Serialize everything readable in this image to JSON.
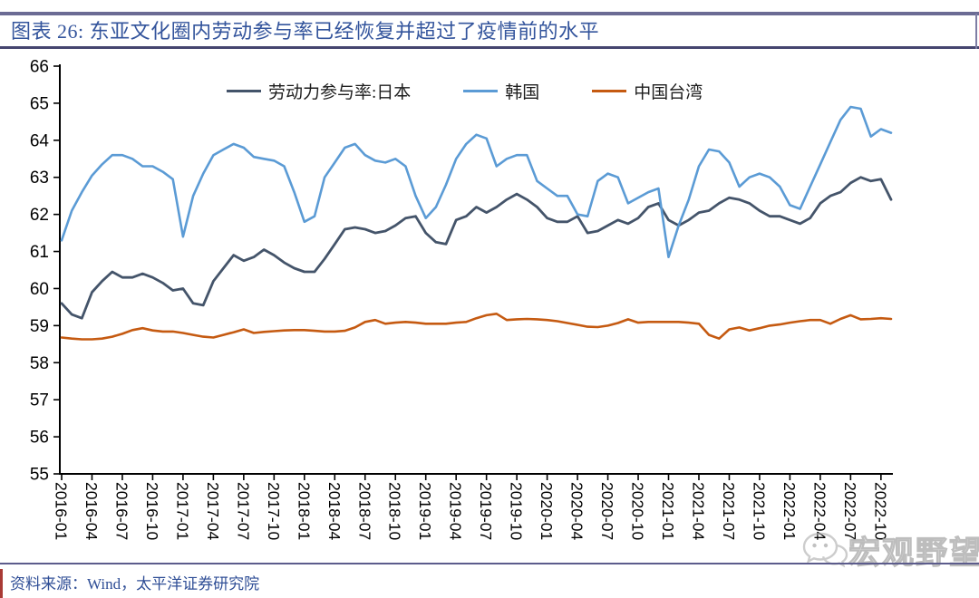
{
  "header": {
    "title": "图表 26:  东亚文化圈内劳动参与率已经恢复并超过了疫情前的水平"
  },
  "footer": {
    "source": "资料来源：Wind，太平洋证券研究院"
  },
  "watermark": {
    "text": "宏观野望",
    "icon": "wechat-icon"
  },
  "colors": {
    "accent_rule": "#6b6b94",
    "title_text": "#33549c",
    "source_text": "#2f4e96"
  },
  "chart_data": {
    "type": "line",
    "title": "东亚文化圈内劳动参与率已经恢复并超过了疫情前的水平",
    "frequency": "monthly",
    "x_start": "2016-01",
    "x_end": "2022-11",
    "x_tick_labels": [
      "2016-01",
      "2016-04",
      "2016-07",
      "2016-10",
      "2017-01",
      "2017-04",
      "2017-07",
      "2017-10",
      "2018-01",
      "2018-04",
      "2018-07",
      "2018-10",
      "2019-01",
      "2019-04",
      "2019-07",
      "2019-10",
      "2020-01",
      "2020-04",
      "2020-07",
      "2020-10",
      "2021-01",
      "2021-04",
      "2021-07",
      "2021-10",
      "2022-01",
      "2022-04",
      "2022-07",
      "2022-10"
    ],
    "x_tick_every_n_months": 3,
    "ylim": [
      55,
      66
    ],
    "y_tick_step": 1,
    "grid": false,
    "legend_position": "top-center",
    "series": [
      {
        "name": "劳动力参与率:日本",
        "color": "#44546A",
        "values": [
          59.6,
          59.3,
          59.2,
          59.9,
          60.2,
          60.45,
          60.3,
          60.3,
          60.4,
          60.3,
          60.15,
          59.95,
          60.0,
          59.6,
          59.55,
          60.2,
          60.55,
          60.9,
          60.75,
          60.85,
          61.05,
          60.9,
          60.7,
          60.55,
          60.45,
          60.45,
          60.8,
          61.2,
          61.6,
          61.65,
          61.6,
          61.5,
          61.55,
          61.7,
          61.9,
          61.95,
          61.5,
          61.25,
          61.2,
          61.85,
          61.95,
          62.2,
          62.05,
          62.2,
          62.4,
          62.55,
          62.4,
          62.2,
          61.9,
          61.8,
          61.8,
          61.95,
          61.5,
          61.55,
          61.7,
          61.85,
          61.75,
          61.9,
          62.2,
          62.3,
          61.85,
          61.7,
          61.85,
          62.05,
          62.1,
          62.3,
          62.45,
          62.4,
          62.3,
          62.1,
          61.95,
          61.95,
          61.85,
          61.75,
          61.9,
          62.3,
          62.5,
          62.6,
          62.85,
          63.0,
          62.9,
          62.95,
          62.4
        ]
      },
      {
        "name": "韩国",
        "color": "#5B9BD5",
        "values": [
          61.3,
          62.1,
          62.6,
          63.05,
          63.35,
          63.6,
          63.6,
          63.5,
          63.3,
          63.3,
          63.15,
          62.95,
          61.4,
          62.5,
          63.1,
          63.6,
          63.75,
          63.9,
          63.8,
          63.55,
          63.5,
          63.45,
          63.3,
          62.6,
          61.8,
          61.95,
          63.0,
          63.4,
          63.8,
          63.9,
          63.6,
          63.45,
          63.4,
          63.5,
          63.3,
          62.5,
          61.9,
          62.2,
          62.8,
          63.5,
          63.9,
          64.15,
          64.05,
          63.3,
          63.5,
          63.6,
          63.6,
          62.9,
          62.7,
          62.5,
          62.5,
          62.0,
          61.95,
          62.9,
          63.1,
          63.0,
          62.3,
          62.45,
          62.6,
          62.7,
          60.85,
          61.7,
          62.4,
          63.3,
          63.75,
          63.7,
          63.4,
          62.75,
          63.0,
          63.1,
          63.0,
          62.75,
          62.25,
          62.15,
          62.75,
          63.35,
          63.95,
          64.55,
          64.9,
          64.85,
          64.1,
          64.3,
          64.2
        ]
      },
      {
        "name": "中国台湾",
        "color": "#C55A11",
        "values": [
          58.68,
          58.65,
          58.63,
          58.63,
          58.65,
          58.7,
          58.78,
          58.88,
          58.93,
          58.87,
          58.84,
          58.84,
          58.8,
          58.75,
          58.7,
          58.68,
          58.75,
          58.82,
          58.9,
          58.8,
          58.83,
          58.85,
          58.87,
          58.88,
          58.88,
          58.86,
          58.84,
          58.84,
          58.86,
          58.95,
          59.1,
          59.15,
          59.05,
          59.08,
          59.1,
          59.08,
          59.05,
          59.05,
          59.05,
          59.08,
          59.1,
          59.2,
          59.28,
          59.32,
          59.15,
          59.17,
          59.18,
          59.17,
          59.15,
          59.12,
          59.07,
          59.02,
          58.97,
          58.96,
          59.0,
          59.07,
          59.17,
          59.08,
          59.1,
          59.1,
          59.1,
          59.1,
          59.08,
          59.05,
          58.75,
          58.65,
          58.9,
          58.95,
          58.87,
          58.93,
          59.0,
          59.03,
          59.08,
          59.12,
          59.15,
          59.15,
          59.05,
          59.18,
          59.28,
          59.17,
          59.18,
          59.2,
          59.18
        ]
      }
    ]
  }
}
